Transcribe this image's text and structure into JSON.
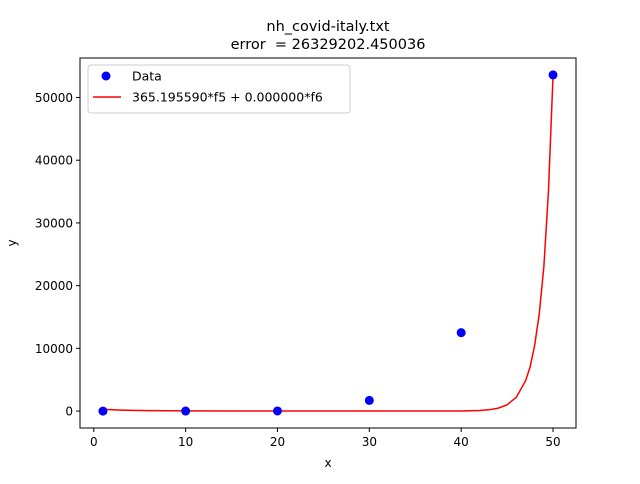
{
  "chart_data": {
    "type": "scatter",
    "title_line1": "nh_covid-italy.txt",
    "title_line2": "error  = 26329202.450036",
    "xlabel": "x",
    "ylabel": "y",
    "xlim": [
      -1.5,
      52.5
    ],
    "ylim": [
      -2700,
      56300
    ],
    "xticks": [
      0,
      10,
      20,
      30,
      40,
      50
    ],
    "yticks": [
      0,
      10000,
      20000,
      30000,
      40000,
      50000
    ],
    "grid": false,
    "legend_position": "top-left",
    "series": [
      {
        "name": "Data",
        "kind": "points",
        "color": "#0000ff",
        "x": [
          1,
          10,
          20,
          30,
          40,
          50
        ],
        "y": [
          0,
          10,
          20,
          1700,
          12500,
          53600
        ]
      },
      {
        "name": "365.195590*f5 + 0.000000*f6",
        "kind": "line",
        "color": "#ff0000",
        "x": [
          1,
          2,
          3,
          5,
          8,
          10,
          15,
          20,
          25,
          30,
          35,
          38,
          40,
          42,
          43,
          44,
          45,
          46,
          47,
          47.5,
          48,
          48.5,
          49,
          49.5,
          50
        ],
        "y": [
          300,
          210,
          150,
          90,
          50,
          35,
          15,
          8,
          5,
          4,
          5,
          8,
          20,
          90,
          200,
          450,
          1000,
          2200,
          4800,
          7000,
          10500,
          15500,
          23000,
          35000,
          53500
        ]
      }
    ]
  }
}
